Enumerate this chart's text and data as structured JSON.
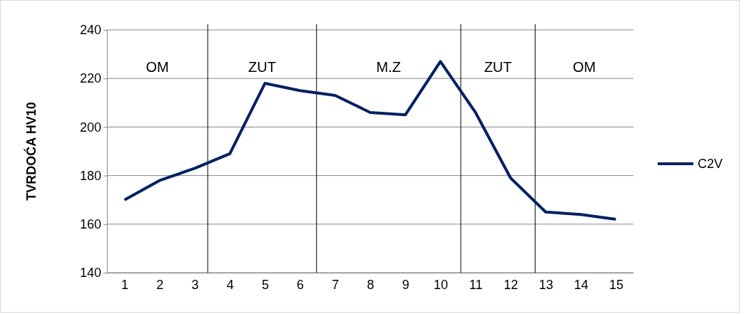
{
  "chart_data": {
    "type": "line",
    "ylabel": "TVRDOĆA HV10",
    "x": [
      1,
      2,
      3,
      4,
      5,
      6,
      7,
      8,
      9,
      10,
      11,
      12,
      13,
      14,
      15
    ],
    "series": [
      {
        "name": "C2V",
        "color": "#002060",
        "values": [
          170,
          178,
          183,
          189,
          218,
          215,
          213,
          206,
          205,
          227,
          206,
          179,
          165,
          164,
          162
        ]
      }
    ],
    "xlim": [
      0.5,
      15.5
    ],
    "xticks": [
      1,
      2,
      3,
      4,
      5,
      6,
      7,
      8,
      9,
      10,
      11,
      12,
      13,
      14,
      15
    ],
    "ylim": [
      140,
      240
    ],
    "yticks": [
      140,
      160,
      180,
      200,
      220,
      240
    ],
    "grid": "y",
    "legend": "right",
    "marker": "none",
    "line_style": "solid",
    "ref_lines": [
      {
        "axis": "x",
        "value": 3.37,
        "color": "#000000"
      },
      {
        "axis": "x",
        "value": 6.47,
        "color": "#000000"
      },
      {
        "axis": "x",
        "value": 10.58,
        "color": "#000000"
      },
      {
        "axis": "x",
        "value": 12.7,
        "color": "#000000"
      }
    ],
    "annotations": [
      "OM",
      "ZUT",
      "M.Z",
      "ZUT",
      "OM"
    ]
  }
}
